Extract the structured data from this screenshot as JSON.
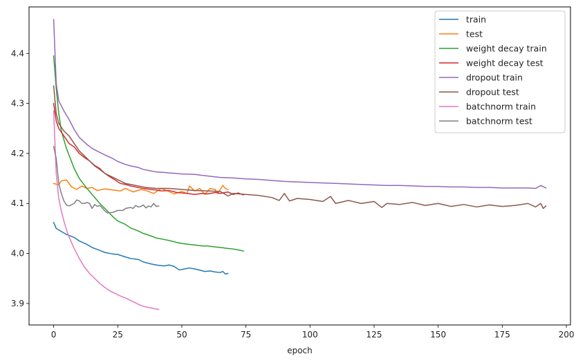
{
  "chart_data": {
    "type": "line",
    "title": "",
    "xlabel": "epoch",
    "ylabel": "",
    "xlim": [
      -9.6,
      201.6
    ],
    "ylim": [
      3.857,
      4.493
    ],
    "xticks": [
      0,
      25,
      50,
      75,
      100,
      125,
      150,
      175,
      200
    ],
    "yticks": [
      3.9,
      4.0,
      4.1,
      4.2,
      4.3,
      4.4
    ],
    "ytick_labels": [
      "3.9",
      "4.0",
      "4.1",
      "4.2",
      "4.3",
      "4.4"
    ],
    "grid": false,
    "legend_position": "top-right",
    "series": [
      {
        "name": "train",
        "color": "#1f77b4",
        "points": [
          [
            0,
            4.062
          ],
          [
            1,
            4.05
          ],
          [
            3,
            4.044
          ],
          [
            5,
            4.038
          ],
          [
            8,
            4.032
          ],
          [
            10,
            4.025
          ],
          [
            13,
            4.018
          ],
          [
            15,
            4.012
          ],
          [
            18,
            4.006
          ],
          [
            20,
            4.002
          ],
          [
            23,
            3.999
          ],
          [
            25,
            3.998
          ],
          [
            28,
            3.993
          ],
          [
            30,
            3.99
          ],
          [
            33,
            3.988
          ],
          [
            35,
            3.983
          ],
          [
            38,
            3.979
          ],
          [
            40,
            3.977
          ],
          [
            43,
            3.975
          ],
          [
            45,
            3.977
          ],
          [
            47,
            3.974
          ],
          [
            49,
            3.967
          ],
          [
            51,
            3.969
          ],
          [
            53,
            3.971
          ],
          [
            56,
            3.968
          ],
          [
            59,
            3.964
          ],
          [
            61,
            3.965
          ],
          [
            63,
            3.963
          ],
          [
            65,
            3.962
          ],
          [
            66,
            3.964
          ],
          [
            67,
            3.959
          ],
          [
            68,
            3.96
          ]
        ]
      },
      {
        "name": "test",
        "color": "#ff7f0e",
        "points": [
          [
            0,
            4.14
          ],
          [
            2,
            4.137
          ],
          [
            3,
            4.145
          ],
          [
            5,
            4.147
          ],
          [
            7,
            4.133
          ],
          [
            9,
            4.128
          ],
          [
            11,
            4.135
          ],
          [
            13,
            4.13
          ],
          [
            15,
            4.132
          ],
          [
            17,
            4.126
          ],
          [
            20,
            4.129
          ],
          [
            23,
            4.127
          ],
          [
            26,
            4.125
          ],
          [
            28,
            4.13
          ],
          [
            31,
            4.123
          ],
          [
            34,
            4.128
          ],
          [
            36,
            4.126
          ],
          [
            39,
            4.12
          ],
          [
            42,
            4.13
          ],
          [
            44,
            4.126
          ],
          [
            47,
            4.119
          ],
          [
            50,
            4.124
          ],
          [
            52,
            4.12
          ],
          [
            53,
            4.135
          ],
          [
            55,
            4.125
          ],
          [
            57,
            4.13
          ],
          [
            59,
            4.118
          ],
          [
            61,
            4.13
          ],
          [
            63,
            4.128
          ],
          [
            64,
            4.12
          ],
          [
            66,
            4.136
          ],
          [
            67,
            4.13
          ],
          [
            68,
            4.128
          ]
        ]
      },
      {
        "name": "weight decay train",
        "color": "#2ca02c",
        "points": [
          [
            0,
            4.395
          ],
          [
            1,
            4.33
          ],
          [
            2,
            4.28
          ],
          [
            3,
            4.245
          ],
          [
            5,
            4.21
          ],
          [
            8,
            4.17
          ],
          [
            10,
            4.15
          ],
          [
            13,
            4.13
          ],
          [
            15,
            4.118
          ],
          [
            18,
            4.1
          ],
          [
            20,
            4.09
          ],
          [
            23,
            4.074
          ],
          [
            25,
            4.065
          ],
          [
            28,
            4.058
          ],
          [
            30,
            4.051
          ],
          [
            33,
            4.045
          ],
          [
            35,
            4.04
          ],
          [
            38,
            4.035
          ],
          [
            40,
            4.031
          ],
          [
            43,
            4.028
          ],
          [
            45,
            4.026
          ],
          [
            48,
            4.022
          ],
          [
            50,
            4.02
          ],
          [
            53,
            4.018
          ],
          [
            55,
            4.017
          ],
          [
            58,
            4.015
          ],
          [
            60,
            4.015
          ],
          [
            63,
            4.013
          ],
          [
            65,
            4.012
          ],
          [
            68,
            4.01
          ],
          [
            70,
            4.009
          ],
          [
            72,
            4.007
          ],
          [
            74,
            4.005
          ]
        ]
      },
      {
        "name": "weight decay test",
        "color": "#d62728",
        "points": [
          [
            0,
            4.3
          ],
          [
            1,
            4.265
          ],
          [
            2,
            4.25
          ],
          [
            4,
            4.235
          ],
          [
            6,
            4.22
          ],
          [
            8,
            4.213
          ],
          [
            10,
            4.2
          ],
          [
            12,
            4.192
          ],
          [
            14,
            4.185
          ],
          [
            16,
            4.176
          ],
          [
            18,
            4.17
          ],
          [
            20,
            4.16
          ],
          [
            22,
            4.153
          ],
          [
            24,
            4.147
          ],
          [
            26,
            4.14
          ],
          [
            28,
            4.138
          ],
          [
            30,
            4.135
          ],
          [
            32,
            4.133
          ],
          [
            35,
            4.13
          ],
          [
            38,
            4.128
          ],
          [
            40,
            4.127
          ],
          [
            42,
            4.125
          ],
          [
            45,
            4.126
          ],
          [
            48,
            4.122
          ],
          [
            50,
            4.121
          ],
          [
            52,
            4.12
          ],
          [
            55,
            4.118
          ],
          [
            58,
            4.12
          ],
          [
            60,
            4.119
          ],
          [
            63,
            4.122
          ],
          [
            65,
            4.12
          ],
          [
            68,
            4.123
          ],
          [
            70,
            4.118
          ],
          [
            72,
            4.121
          ],
          [
            74,
            4.117
          ]
        ]
      },
      {
        "name": "dropout train",
        "color": "#9467bd",
        "points": [
          [
            0,
            4.468
          ],
          [
            1,
            4.34
          ],
          [
            2,
            4.305
          ],
          [
            4,
            4.285
          ],
          [
            6,
            4.268
          ],
          [
            8,
            4.248
          ],
          [
            10,
            4.232
          ],
          [
            13,
            4.218
          ],
          [
            15,
            4.21
          ],
          [
            18,
            4.202
          ],
          [
            20,
            4.197
          ],
          [
            23,
            4.19
          ],
          [
            25,
            4.184
          ],
          [
            28,
            4.178
          ],
          [
            30,
            4.175
          ],
          [
            33,
            4.172
          ],
          [
            35,
            4.168
          ],
          [
            38,
            4.165
          ],
          [
            40,
            4.163
          ],
          [
            43,
            4.162
          ],
          [
            45,
            4.161
          ],
          [
            48,
            4.16
          ],
          [
            50,
            4.159
          ],
          [
            55,
            4.158
          ],
          [
            60,
            4.155
          ],
          [
            65,
            4.152
          ],
          [
            70,
            4.151
          ],
          [
            75,
            4.149
          ],
          [
            80,
            4.148
          ],
          [
            85,
            4.146
          ],
          [
            90,
            4.144
          ],
          [
            95,
            4.143
          ],
          [
            100,
            4.142
          ],
          [
            105,
            4.141
          ],
          [
            110,
            4.14
          ],
          [
            115,
            4.139
          ],
          [
            120,
            4.138
          ],
          [
            125,
            4.137
          ],
          [
            130,
            4.136
          ],
          [
            135,
            4.136
          ],
          [
            140,
            4.135
          ],
          [
            145,
            4.134
          ],
          [
            150,
            4.134
          ],
          [
            155,
            4.133
          ],
          [
            160,
            4.133
          ],
          [
            165,
            4.132
          ],
          [
            170,
            4.132
          ],
          [
            175,
            4.131
          ],
          [
            180,
            4.131
          ],
          [
            185,
            4.131
          ],
          [
            188,
            4.13
          ],
          [
            190,
            4.136
          ],
          [
            192,
            4.131
          ]
        ]
      },
      {
        "name": "dropout test",
        "color": "#8c564b",
        "points": [
          [
            0,
            4.335
          ],
          [
            1,
            4.28
          ],
          [
            2,
            4.26
          ],
          [
            4,
            4.245
          ],
          [
            6,
            4.235
          ],
          [
            8,
            4.22
          ],
          [
            10,
            4.205
          ],
          [
            12,
            4.195
          ],
          [
            14,
            4.185
          ],
          [
            16,
            4.175
          ],
          [
            18,
            4.168
          ],
          [
            20,
            4.16
          ],
          [
            22,
            4.155
          ],
          [
            24,
            4.15
          ],
          [
            26,
            4.145
          ],
          [
            28,
            4.14
          ],
          [
            30,
            4.138
          ],
          [
            33,
            4.135
          ],
          [
            36,
            4.132
          ],
          [
            40,
            4.13
          ],
          [
            45,
            4.13
          ],
          [
            50,
            4.128
          ],
          [
            55,
            4.126
          ],
          [
            60,
            4.125
          ],
          [
            65,
            4.124
          ],
          [
            68,
            4.115
          ],
          [
            70,
            4.12
          ],
          [
            75,
            4.118
          ],
          [
            80,
            4.116
          ],
          [
            85,
            4.112
          ],
          [
            88,
            4.106
          ],
          [
            90,
            4.12
          ],
          [
            92,
            4.105
          ],
          [
            95,
            4.11
          ],
          [
            100,
            4.108
          ],
          [
            105,
            4.104
          ],
          [
            108,
            4.114
          ],
          [
            110,
            4.1
          ],
          [
            115,
            4.106
          ],
          [
            120,
            4.1
          ],
          [
            125,
            4.104
          ],
          [
            128,
            4.092
          ],
          [
            130,
            4.1
          ],
          [
            135,
            4.098
          ],
          [
            140,
            4.102
          ],
          [
            145,
            4.096
          ],
          [
            150,
            4.1
          ],
          [
            155,
            4.094
          ],
          [
            160,
            4.098
          ],
          [
            165,
            4.093
          ],
          [
            170,
            4.097
          ],
          [
            175,
            4.094
          ],
          [
            180,
            4.096
          ],
          [
            185,
            4.1
          ],
          [
            188,
            4.093
          ],
          [
            190,
            4.1
          ],
          [
            191,
            4.09
          ],
          [
            192,
            4.095
          ]
        ]
      },
      {
        "name": "batchnorm train",
        "color": "#e377c2",
        "points": [
          [
            0,
            4.285
          ],
          [
            1,
            4.16
          ],
          [
            2,
            4.11
          ],
          [
            3,
            4.085
          ],
          [
            4,
            4.065
          ],
          [
            5,
            4.047
          ],
          [
            6,
            4.033
          ],
          [
            8,
            4.01
          ],
          [
            10,
            3.99
          ],
          [
            12,
            3.973
          ],
          [
            14,
            3.96
          ],
          [
            16,
            3.95
          ],
          [
            18,
            3.94
          ],
          [
            20,
            3.932
          ],
          [
            22,
            3.925
          ],
          [
            24,
            3.92
          ],
          [
            26,
            3.915
          ],
          [
            28,
            3.911
          ],
          [
            30,
            3.906
          ],
          [
            32,
            3.901
          ],
          [
            34,
            3.896
          ],
          [
            36,
            3.893
          ],
          [
            38,
            3.891
          ],
          [
            40,
            3.889
          ],
          [
            41,
            3.888
          ]
        ]
      },
      {
        "name": "batchnorm test",
        "color": "#7f7f7f",
        "points": [
          [
            0,
            4.214
          ],
          [
            1,
            4.19
          ],
          [
            2,
            4.14
          ],
          [
            3,
            4.12
          ],
          [
            4,
            4.105
          ],
          [
            5,
            4.097
          ],
          [
            6,
            4.095
          ],
          [
            8,
            4.1
          ],
          [
            9,
            4.107
          ],
          [
            10,
            4.105
          ],
          [
            11,
            4.1
          ],
          [
            12,
            4.1
          ],
          [
            13,
            4.102
          ],
          [
            14,
            4.1
          ],
          [
            15,
            4.09
          ],
          [
            16,
            4.098
          ],
          [
            17,
            4.094
          ],
          [
            18,
            4.096
          ],
          [
            19,
            4.091
          ],
          [
            20,
            4.085
          ],
          [
            21,
            4.081
          ],
          [
            23,
            4.082
          ],
          [
            25,
            4.086
          ],
          [
            27,
            4.086
          ],
          [
            28,
            4.09
          ],
          [
            30,
            4.092
          ],
          [
            31,
            4.09
          ],
          [
            32,
            4.096
          ],
          [
            33,
            4.093
          ],
          [
            34,
            4.094
          ],
          [
            35,
            4.097
          ],
          [
            36,
            4.091
          ],
          [
            37,
            4.095
          ],
          [
            38,
            4.093
          ],
          [
            39,
            4.1
          ],
          [
            40,
            4.094
          ],
          [
            41,
            4.095
          ]
        ]
      }
    ]
  }
}
